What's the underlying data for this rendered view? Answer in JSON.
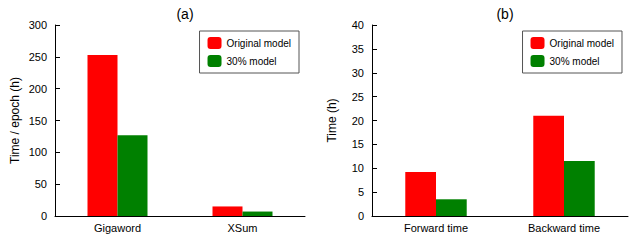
{
  "chart_data": [
    {
      "type": "bar",
      "title": "(a)",
      "y_label": "Time / epoch (h)",
      "categories": [
        "Gigaword",
        "XSum"
      ],
      "series": [
        {
          "name": "Original model",
          "color": "#ff0000",
          "values": [
            253,
            15
          ]
        },
        {
          "name": "30% model",
          "color": "#008000",
          "values": [
            127,
            7
          ]
        }
      ],
      "ylim": [
        0,
        300
      ],
      "yticks": [
        0,
        50,
        100,
        150,
        200,
        250,
        300
      ],
      "grid": false,
      "legend": "top-right"
    },
    {
      "type": "bar",
      "title": "(b)",
      "y_label": "Time (h)",
      "categories": [
        "Forward time",
        "Backward time"
      ],
      "series": [
        {
          "name": "Original model",
          "color": "#ff0000",
          "values": [
            9.2,
            21
          ]
        },
        {
          "name": "30% model",
          "color": "#008000",
          "values": [
            3.5,
            11.5
          ]
        }
      ],
      "ylim": [
        0,
        40
      ],
      "yticks": [
        0,
        5,
        10,
        15,
        20,
        25,
        30,
        35,
        40
      ],
      "grid": false,
      "legend": "top-right"
    }
  ]
}
